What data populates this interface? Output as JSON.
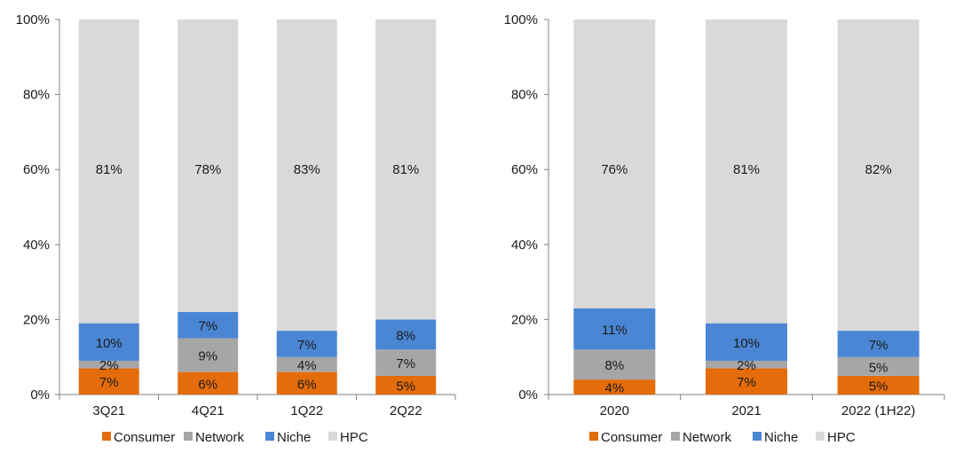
{
  "chart_data": [
    {
      "type": "bar",
      "stacked": true,
      "percent_stacked": true,
      "categories": [
        "3Q21",
        "4Q21",
        "1Q22",
        "2Q22"
      ],
      "series": [
        {
          "name": "Consumer",
          "color": "#E46C0A",
          "values": [
            7,
            6,
            6,
            5
          ]
        },
        {
          "name": "Network",
          "color": "#A6A6A6",
          "values": [
            2,
            9,
            4,
            7
          ]
        },
        {
          "name": "Niche",
          "color": "#4A86D4",
          "values": [
            10,
            7,
            7,
            8
          ]
        },
        {
          "name": "HPC",
          "color": "#D9D9D9",
          "values": [
            81,
            78,
            83,
            81
          ]
        }
      ],
      "yticks": [
        "0%",
        "20%",
        "40%",
        "60%",
        "80%",
        "100%"
      ],
      "ylim": [
        0,
        100
      ],
      "legend": "bottom",
      "grid": false
    },
    {
      "type": "bar",
      "stacked": true,
      "percent_stacked": true,
      "categories": [
        "2020",
        "2021",
        "2022 (1H22)"
      ],
      "series": [
        {
          "name": "Consumer",
          "color": "#E46C0A",
          "values": [
            4,
            7,
            5
          ]
        },
        {
          "name": "Network",
          "color": "#A6A6A6",
          "values": [
            8,
            2,
            5
          ]
        },
        {
          "name": "Niche",
          "color": "#4A86D4",
          "values": [
            11,
            10,
            7
          ]
        },
        {
          "name": "HPC",
          "color": "#D9D9D9",
          "values": [
            76,
            81,
            82
          ]
        }
      ],
      "yticks": [
        "0%",
        "20%",
        "40%",
        "60%",
        "80%",
        "100%"
      ],
      "ylim": [
        0,
        100
      ],
      "legend": "bottom",
      "grid": false
    }
  ]
}
